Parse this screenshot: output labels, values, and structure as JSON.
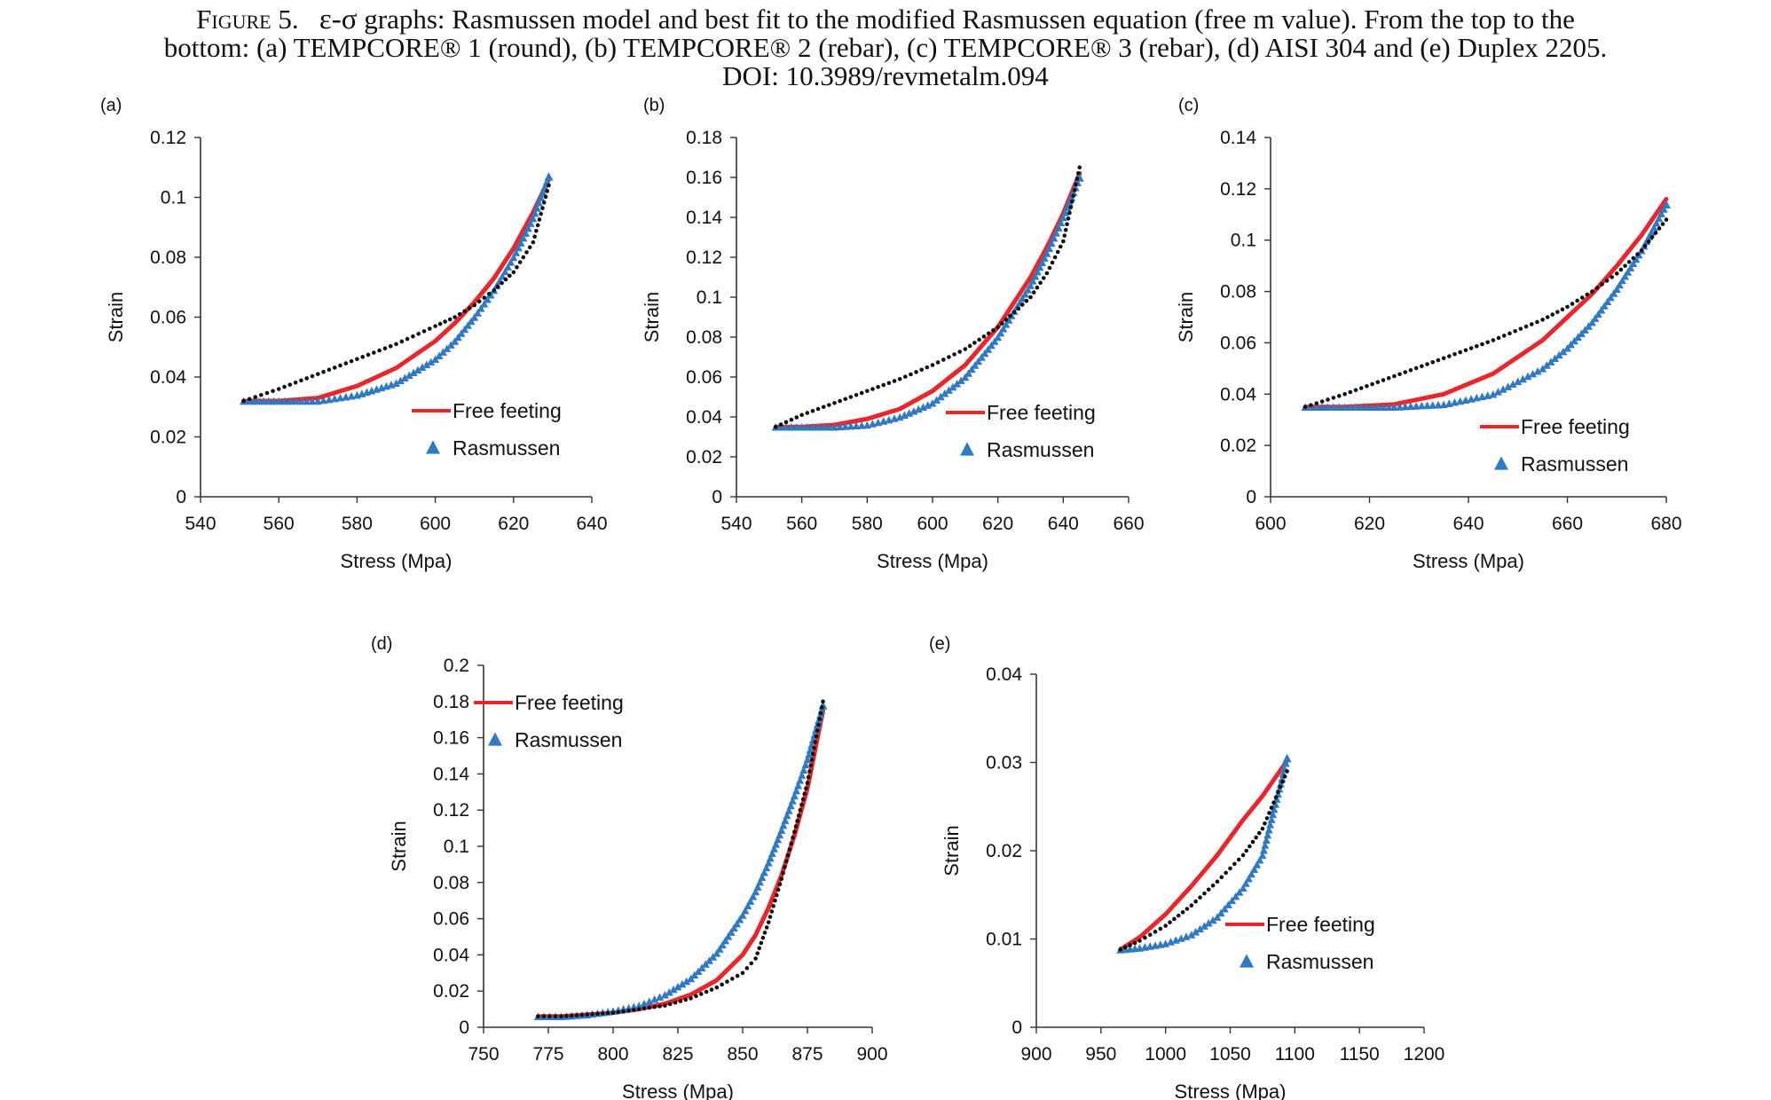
{
  "caption": {
    "figure_label": "Figure 5.",
    "symbol": "ε-σ",
    "line1_rest": " graphs: Rasmussen model and best fit to the modified Rasmussen equation (free m value). From the top to the",
    "line2": "bottom: (a) TEMPCORE® 1 (round), (b) TEMPCORE® 2 (rebar), (c) TEMPCORE® 3 (rebar), (d) AISI 304 and (e) Duplex 2205.",
    "line3": "DOI: 10.3989/revmetalm.094"
  },
  "colors": {
    "free_fitting": "#e8262b",
    "rasmussen": "#2f7ac2",
    "experimental": "#111111",
    "axis": "#333333"
  },
  "chart_data": [
    {
      "panel": "(a)",
      "type": "line",
      "xlabel": "Stress (Mpa)",
      "ylabel": "Strain",
      "xlim": [
        540,
        640
      ],
      "ylim": [
        0,
        0.12
      ],
      "xticks": [
        540,
        560,
        580,
        600,
        620,
        640
      ],
      "yticks": [
        0,
        0.02,
        0.04,
        0.06,
        0.08,
        0.1,
        0.12
      ],
      "xtick_labels": [
        "540",
        "560",
        "580",
        "600",
        "620",
        "640"
      ],
      "ytick_labels": [
        "0",
        "0.02",
        "0.04",
        "0.06",
        "0.08",
        "0.1",
        "0.12"
      ],
      "legend_position": "lower-right",
      "legend": [
        "Free feeting",
        "Rasmussen"
      ],
      "series": [
        {
          "name": "Free feeting",
          "style": "line",
          "x": [
            551,
            560,
            570,
            580,
            590,
            600,
            605,
            610,
            615,
            620,
            625,
            629
          ],
          "y": [
            0.032,
            0.032,
            0.033,
            0.037,
            0.043,
            0.052,
            0.058,
            0.065,
            0.073,
            0.083,
            0.095,
            0.106
          ]
        },
        {
          "name": "Rasmussen",
          "style": "triangles",
          "x": [
            551,
            560,
            570,
            580,
            590,
            600,
            605,
            610,
            615,
            620,
            625,
            629
          ],
          "y": [
            0.032,
            0.032,
            0.032,
            0.034,
            0.038,
            0.046,
            0.052,
            0.06,
            0.069,
            0.08,
            0.093,
            0.107
          ]
        },
        {
          "style": "dots",
          "x": [
            551,
            560,
            570,
            580,
            590,
            600,
            605,
            610,
            615,
            620,
            625,
            629
          ],
          "y": [
            0.032,
            0.036,
            0.041,
            0.046,
            0.051,
            0.057,
            0.06,
            0.064,
            0.069,
            0.075,
            0.085,
            0.104
          ]
        }
      ]
    },
    {
      "panel": "(b)",
      "type": "line",
      "xlabel": "Stress (Mpa)",
      "ylabel": "Strain",
      "xlim": [
        540,
        660
      ],
      "ylim": [
        0,
        0.18
      ],
      "xticks": [
        540,
        560,
        580,
        600,
        620,
        640,
        660
      ],
      "yticks": [
        0,
        0.02,
        0.04,
        0.06,
        0.08,
        0.1,
        0.12,
        0.14,
        0.16,
        0.18
      ],
      "xtick_labels": [
        "540",
        "560",
        "580",
        "600",
        "620",
        "640",
        "660"
      ],
      "ytick_labels": [
        "0",
        "0.02",
        "0.04",
        "0.06",
        "0.08",
        "0.1",
        "0.12",
        "0.14",
        "0.16",
        "0.18"
      ],
      "legend_position": "lower-right",
      "legend": [
        "Free feeting",
        "Rasmussen"
      ],
      "series": [
        {
          "name": "Free feeting",
          "style": "line",
          "x": [
            552,
            560,
            570,
            580,
            590,
            600,
            610,
            620,
            630,
            635,
            640,
            645
          ],
          "y": [
            0.035,
            0.035,
            0.036,
            0.039,
            0.044,
            0.053,
            0.066,
            0.085,
            0.11,
            0.125,
            0.142,
            0.162
          ]
        },
        {
          "name": "Rasmussen",
          "style": "triangles",
          "x": [
            552,
            560,
            570,
            580,
            590,
            600,
            610,
            620,
            630,
            635,
            640,
            645
          ],
          "y": [
            0.035,
            0.035,
            0.035,
            0.036,
            0.04,
            0.047,
            0.06,
            0.08,
            0.106,
            0.122,
            0.14,
            0.16
          ]
        },
        {
          "style": "dots",
          "x": [
            552,
            560,
            570,
            580,
            590,
            600,
            610,
            620,
            630,
            635,
            640,
            645
          ],
          "y": [
            0.035,
            0.041,
            0.047,
            0.053,
            0.059,
            0.066,
            0.074,
            0.085,
            0.1,
            0.112,
            0.128,
            0.165
          ]
        }
      ]
    },
    {
      "panel": "(c)",
      "type": "line",
      "xlabel": "Stress (Mpa)",
      "ylabel": "Strain",
      "xlim": [
        600,
        680
      ],
      "ylim": [
        0,
        0.14
      ],
      "xticks": [
        600,
        620,
        640,
        660,
        680
      ],
      "yticks": [
        0,
        0.02,
        0.04,
        0.06,
        0.08,
        0.1,
        0.12,
        0.14
      ],
      "xtick_labels": [
        "600",
        "620",
        "640",
        "660",
        "680"
      ],
      "ytick_labels": [
        "0",
        "0.02",
        "0.04",
        "0.06",
        "0.08",
        "0.1",
        "0.12",
        "0.14"
      ],
      "legend_position": "lower-right",
      "legend": [
        "Free feeting",
        "Rasmussen"
      ],
      "series": [
        {
          "name": "Free feeting",
          "style": "line",
          "x": [
            607,
            615,
            625,
            635,
            645,
            655,
            660,
            665,
            670,
            675,
            680
          ],
          "y": [
            0.035,
            0.035,
            0.036,
            0.04,
            0.048,
            0.061,
            0.07,
            0.079,
            0.09,
            0.102,
            0.116
          ]
        },
        {
          "name": "Rasmussen",
          "style": "triangles",
          "x": [
            607,
            615,
            625,
            635,
            645,
            655,
            660,
            665,
            670,
            675,
            680
          ],
          "y": [
            0.035,
            0.035,
            0.035,
            0.036,
            0.04,
            0.05,
            0.058,
            0.068,
            0.081,
            0.096,
            0.114
          ]
        },
        {
          "style": "dots",
          "x": [
            607,
            615,
            625,
            635,
            645,
            655,
            660,
            665,
            670,
            675,
            680
          ],
          "y": [
            0.035,
            0.04,
            0.047,
            0.054,
            0.061,
            0.069,
            0.074,
            0.08,
            0.087,
            0.096,
            0.108
          ]
        }
      ]
    },
    {
      "panel": "(d)",
      "type": "line",
      "xlabel": "Stress (Mpa)",
      "ylabel": "Strain",
      "xlim": [
        750,
        900
      ],
      "ylim": [
        0,
        0.2
      ],
      "xticks": [
        750,
        775,
        800,
        825,
        850,
        875,
        900
      ],
      "yticks": [
        0,
        0.02,
        0.04,
        0.06,
        0.08,
        0.1,
        0.12,
        0.14,
        0.16,
        0.18,
        0.2
      ],
      "xtick_labels": [
        "750",
        "775",
        "800",
        "825",
        "850",
        "875",
        "900"
      ],
      "ytick_labels": [
        "0",
        "0.02",
        "0.04",
        "0.06",
        "0.08",
        "0.1",
        "0.12",
        "0.14",
        "0.16",
        "0.18",
        "0.2"
      ],
      "legend_position": "top-left",
      "legend": [
        "Free feeting",
        "Rasmussen"
      ],
      "series": [
        {
          "name": "Free feeting",
          "style": "line",
          "x": [
            771,
            780,
            790,
            800,
            810,
            820,
            830,
            840,
            850,
            855,
            860,
            865,
            870,
            875,
            881
          ],
          "y": [
            0.006,
            0.006,
            0.007,
            0.008,
            0.01,
            0.013,
            0.018,
            0.026,
            0.04,
            0.051,
            0.066,
            0.084,
            0.106,
            0.132,
            0.175
          ]
        },
        {
          "name": "Rasmussen",
          "style": "triangles",
          "x": [
            771,
            780,
            790,
            800,
            810,
            820,
            830,
            840,
            850,
            855,
            860,
            865,
            870,
            875,
            881
          ],
          "y": [
            0.006,
            0.006,
            0.007,
            0.009,
            0.012,
            0.018,
            0.027,
            0.041,
            0.062,
            0.075,
            0.091,
            0.109,
            0.128,
            0.148,
            0.178
          ]
        },
        {
          "style": "dots",
          "x": [
            771,
            780,
            790,
            800,
            810,
            820,
            830,
            840,
            850,
            855,
            860,
            865,
            870,
            875,
            881
          ],
          "y": [
            0.006,
            0.006,
            0.007,
            0.008,
            0.01,
            0.012,
            0.016,
            0.022,
            0.03,
            0.038,
            0.058,
            0.082,
            0.108,
            0.135,
            0.18
          ]
        }
      ]
    },
    {
      "panel": "(e)",
      "type": "line",
      "xlabel": "Stress (Mpa)",
      "ylabel": "Strain",
      "xlim": [
        900,
        1200
      ],
      "ylim": [
        0,
        0.04
      ],
      "xticks": [
        900,
        950,
        1000,
        1050,
        1100,
        1150,
        1200
      ],
      "yticks": [
        0,
        0.01,
        0.02,
        0.03,
        0.04
      ],
      "xtick_labels": [
        "900",
        "950",
        "1000",
        "1050",
        "1100",
        "1150",
        "1200"
      ],
      "ytick_labels": [
        "0",
        "0.01",
        "0.02",
        "0.03",
        "0.04"
      ],
      "legend_position": "lower-right",
      "legend": [
        "Free feeting",
        "Rasmussen"
      ],
      "series": [
        {
          "name": "Free feeting",
          "style": "line",
          "x": [
            965,
            980,
            1000,
            1020,
            1040,
            1060,
            1075,
            1094
          ],
          "y": [
            0.0088,
            0.0102,
            0.0128,
            0.016,
            0.0195,
            0.0235,
            0.0262,
            0.0302
          ]
        },
        {
          "name": "Rasmussen",
          "style": "triangles",
          "x": [
            965,
            980,
            1000,
            1020,
            1040,
            1060,
            1075,
            1094
          ],
          "y": [
            0.0088,
            0.009,
            0.0095,
            0.0105,
            0.0125,
            0.0158,
            0.0195,
            0.0305
          ]
        },
        {
          "style": "dots",
          "x": [
            965,
            980,
            1000,
            1020,
            1040,
            1060,
            1075,
            1094
          ],
          "y": [
            0.0088,
            0.0098,
            0.0115,
            0.0138,
            0.0165,
            0.0195,
            0.0225,
            0.029
          ]
        }
      ]
    }
  ]
}
